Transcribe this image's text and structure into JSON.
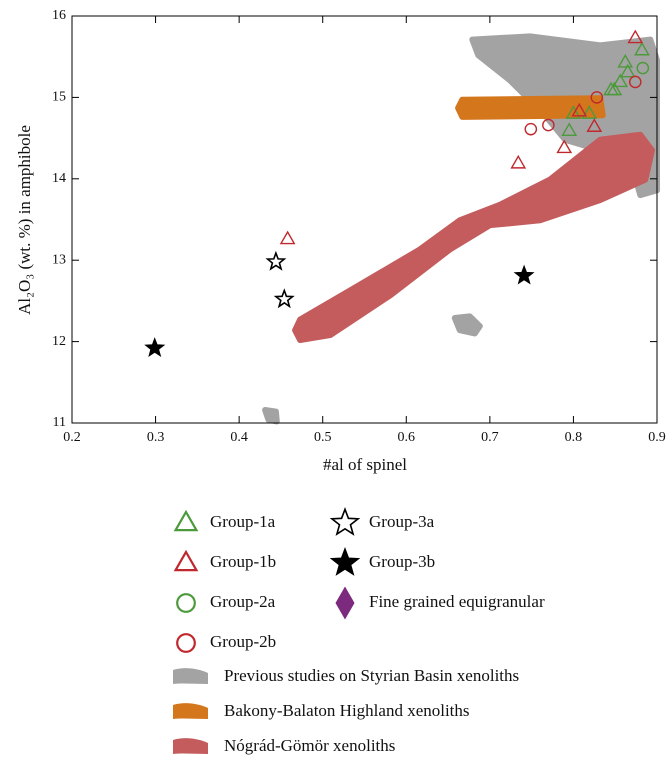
{
  "chart_data": {
    "type": "scatter",
    "xlabel": "#al of spinel",
    "ylabel": "Al₂O₃ (wt. %) in amphibole",
    "xlim": [
      0.2,
      0.9
    ],
    "ylim": [
      11,
      16
    ],
    "xticks": [
      0.2,
      0.3,
      0.4,
      0.5,
      0.6,
      0.7,
      0.8,
      0.9
    ],
    "yticks": [
      11,
      12,
      13,
      14,
      15,
      16
    ],
    "regions": [
      {
        "name": "Previous studies on Styrian Basin xenoliths",
        "color": "#a3a3a3",
        "x": [
          0.679,
          0.748,
          0.832,
          0.892,
          0.9,
          0.9,
          0.88,
          0.868,
          0.832,
          0.79,
          0.766,
          0.724,
          0.686,
          null,
          0.658,
          0.676,
          0.688,
          0.682,
          0.664,
          null,
          0.431,
          0.444,
          0.445,
          0.435
        ],
        "y": [
          15.71,
          15.75,
          15.64,
          15.71,
          15.46,
          13.86,
          13.8,
          14.23,
          14.35,
          14.48,
          14.78,
          15.21,
          15.52,
          null,
          12.29,
          12.31,
          12.19,
          12.1,
          12.14,
          null,
          11.16,
          11.14,
          11.02,
          11.04
        ]
      },
      {
        "name": "Bakony-Balaton Highland xenoliths",
        "color": "#d4761c",
        "x": [
          0.667,
          0.832,
          0.835,
          0.667,
          0.662
        ],
        "y": [
          14.97,
          14.99,
          14.78,
          14.76,
          14.87
        ]
      },
      {
        "name": "Nógrád-Gömör xenoliths",
        "color": "#c45c5e",
        "x": [
          0.473,
          0.533,
          0.616,
          0.664,
          0.712,
          0.772,
          0.832,
          0.88,
          0.894,
          0.886,
          0.832,
          0.76,
          0.7,
          0.652,
          0.581,
          0.509,
          0.473,
          0.467
        ],
        "y": [
          12.27,
          12.63,
          13.13,
          13.49,
          13.68,
          13.99,
          14.48,
          14.54,
          14.35,
          13.99,
          13.74,
          13.49,
          13.43,
          13.13,
          12.57,
          12.08,
          12.02,
          12.14
        ]
      }
    ],
    "series": [
      {
        "name": "Group-1a",
        "color": "#4c9a3c",
        "marker": "triangle",
        "filled": false,
        "x": [
          0.862,
          0.882,
          0.865,
          0.856,
          0.849,
          0.845,
          0.795,
          0.8,
          0.819
        ],
        "y": [
          15.43,
          15.58,
          15.31,
          15.19,
          15.09,
          15.09,
          14.59,
          14.8,
          14.8
        ]
      },
      {
        "name": "Group-1b",
        "color": "#c0282d",
        "marker": "triangle",
        "filled": false,
        "x": [
          0.874,
          0.458,
          0.734,
          0.789,
          0.807,
          0.825
        ],
        "y": [
          15.73,
          13.26,
          14.19,
          14.38,
          14.83,
          14.64
        ]
      },
      {
        "name": "Group-2a",
        "color": "#4c9a3c",
        "marker": "circle",
        "filled": false,
        "x": [
          0.883
        ],
        "y": [
          15.36
        ]
      },
      {
        "name": "Group-2b",
        "color": "#c0282d",
        "marker": "circle",
        "filled": false,
        "x": [
          0.874,
          0.828,
          0.77,
          0.749
        ],
        "y": [
          15.19,
          15.0,
          14.66,
          14.61
        ]
      },
      {
        "name": "Group-3a",
        "color": "#000000",
        "marker": "star",
        "filled": false,
        "x": [
          0.444,
          0.454
        ],
        "y": [
          12.98,
          12.52
        ]
      },
      {
        "name": "Group-3b",
        "color": "#000000",
        "marker": "star",
        "filled": true,
        "x": [
          0.299,
          0.741
        ],
        "y": [
          11.92,
          12.81
        ]
      },
      {
        "name": "Fine grained equigranular",
        "color": "#7b2a7e",
        "marker": "diamond",
        "filled": true,
        "x": [],
        "y": []
      }
    ]
  }
}
